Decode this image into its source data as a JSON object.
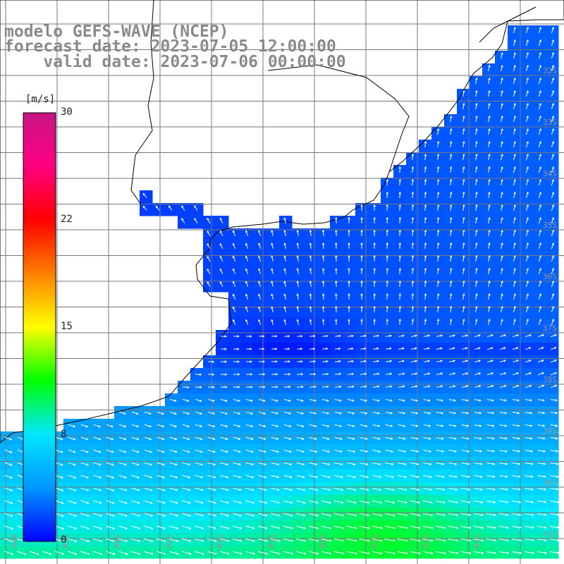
{
  "header": {
    "line1": "modelo GEFS-WAVE (NCEP)",
    "line2": "forecast date: 2023-07-05 12:00:00",
    "line3": "    valid date: 2023-07-06 00:00:00"
  },
  "colorbar": {
    "units": "[m/s]",
    "ticks": [
      "30",
      "22",
      "15",
      "8",
      "0"
    ],
    "range": [
      0,
      30
    ],
    "colors": [
      "#0000ff",
      "#0096ff",
      "#00e6ff",
      "#00ff00",
      "#ffff00",
      "#ff7f00",
      "#ff0000",
      "#ff0080",
      "#c71585"
    ]
  },
  "map": {
    "lat_labels": [
      "32S",
      "33S",
      "34S",
      "35S",
      "36S",
      "37S",
      "38S",
      "39S",
      "40S",
      "41S"
    ],
    "lon_labels": [
      "60W",
      "59W",
      "58W",
      "57W",
      "56W",
      "55W",
      "54W",
      "53W",
      "52W",
      "51W"
    ],
    "land_color": "#ffffff",
    "grid_color": "#777777",
    "coast_color": "#000000",
    "arrow_color": "#ffffff"
  }
}
